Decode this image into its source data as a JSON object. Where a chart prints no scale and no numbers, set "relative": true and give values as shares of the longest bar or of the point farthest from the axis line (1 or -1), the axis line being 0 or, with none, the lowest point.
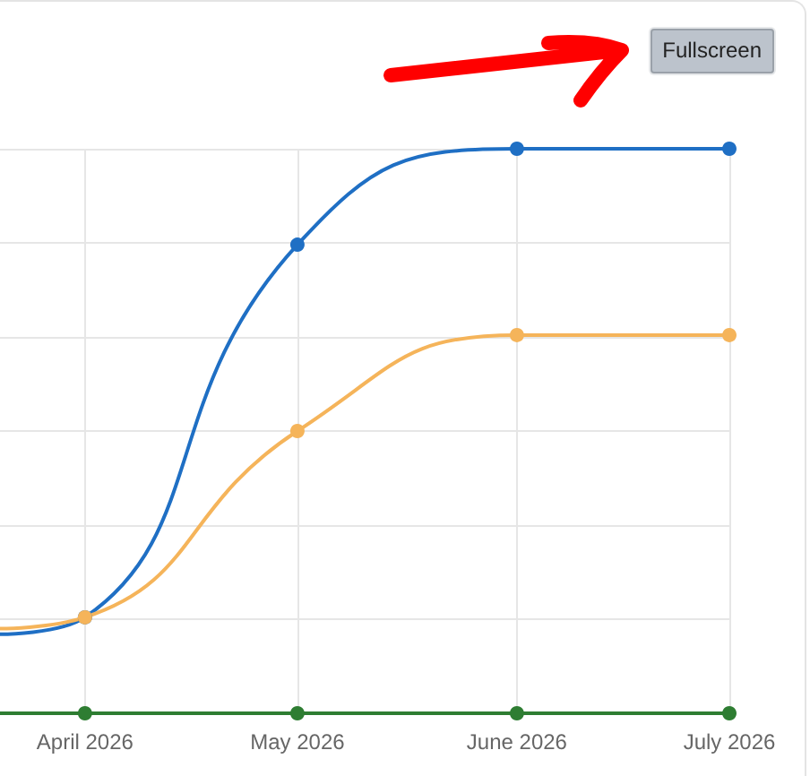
{
  "chart_data": {
    "type": "line",
    "relative": true,
    "x": [
      "2026-03-20",
      "2026-04",
      "2026-05",
      "2026-06",
      "2026-07"
    ],
    "xlim": [
      "2026-03-20",
      "2026-07"
    ],
    "xticks": [
      {
        "value": "2026-04",
        "label": "April 2026"
      },
      {
        "value": "2026-05",
        "label": "May 2026"
      },
      {
        "value": "2026-06",
        "label": "June 2026"
      },
      {
        "value": "2026-07",
        "label": "July 2026"
      }
    ],
    "series": [
      {
        "color": "#1f6fc4",
        "values": [
          0.14,
          0.17,
          0.83,
          1,
          1
        ]
      },
      {
        "color": "#f5b45a",
        "values": [
          0.15,
          0.17,
          0.5,
          0.67,
          0.67
        ]
      },
      {
        "color": "#2e7d32",
        "values": [
          0,
          0,
          0,
          0,
          0
        ]
      }
    ],
    "marker": "circle",
    "line_style": "solid",
    "grid": true,
    "tick_labels": "x",
    "annotations": [
      "Fullscreen"
    ]
  }
}
